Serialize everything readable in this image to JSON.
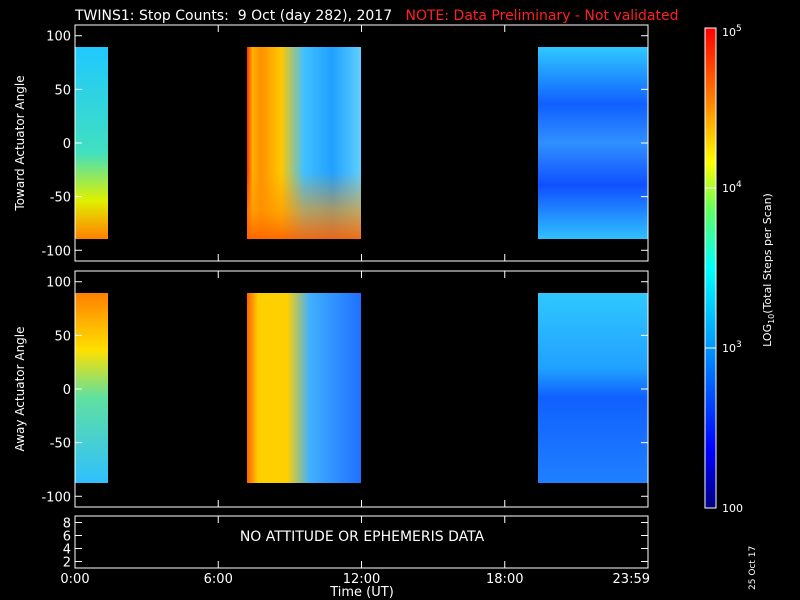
{
  "title": "TWINS1: Stop Counts:  9 Oct (day 282), 2017",
  "note": "NOTE: Data Preliminary - Not validated",
  "stamp": "25 Oct 17",
  "chart_data": [
    {
      "type": "heatmap",
      "panel": "top",
      "ylabel": "Toward Actuator Angle",
      "yticks": [
        100,
        50,
        0,
        -50,
        -100
      ],
      "ylim": [
        -110,
        110
      ],
      "data_ylim": [
        -90,
        90
      ],
      "xticks": [
        "0:00",
        "6:00",
        "12:00",
        "18:00",
        "23:59"
      ],
      "xlim_hours": [
        0,
        24
      ],
      "blocks": [
        {
          "t_start": 0.0,
          "t_end": 1.2,
          "level": "mid-high"
        },
        {
          "t_start": 7.3,
          "t_end": 12.0,
          "level": "high"
        },
        {
          "t_start": 19.5,
          "t_end": 24.0,
          "level": "low"
        }
      ],
      "grid": true
    },
    {
      "type": "heatmap",
      "panel": "middle",
      "ylabel": "Away Actuator Angle",
      "yticks": [
        100,
        50,
        0,
        -50,
        -100
      ],
      "ylim": [
        -110,
        110
      ],
      "data_ylim": [
        -90,
        90
      ],
      "xticks": [
        "0:00",
        "6:00",
        "12:00",
        "18:00",
        "23:59"
      ],
      "xlim_hours": [
        0,
        24
      ],
      "blocks": [
        {
          "t_start": 0.0,
          "t_end": 1.2,
          "level": "mid-high"
        },
        {
          "t_start": 7.3,
          "t_end": 12.0,
          "level": "high"
        },
        {
          "t_start": 19.5,
          "t_end": 24.0,
          "level": "low"
        }
      ],
      "grid": true
    },
    {
      "type": "line",
      "panel": "bottom",
      "yticks": [
        8,
        6,
        4,
        2
      ],
      "ylim": [
        1,
        9
      ],
      "message": "NO ATTITUDE OR EPHEMERIS DATA",
      "xticks": [
        "0:00",
        "6:00",
        "12:00",
        "18:00",
        "23:59"
      ],
      "xlabel": "Time (UT)"
    }
  ],
  "colorbar": {
    "label": "LOG10(Total Steps per Scan)",
    "ticks": [
      "10^5",
      "10^4",
      "10^3",
      "100"
    ],
    "scale": "log",
    "range": [
      100,
      100000
    ]
  }
}
